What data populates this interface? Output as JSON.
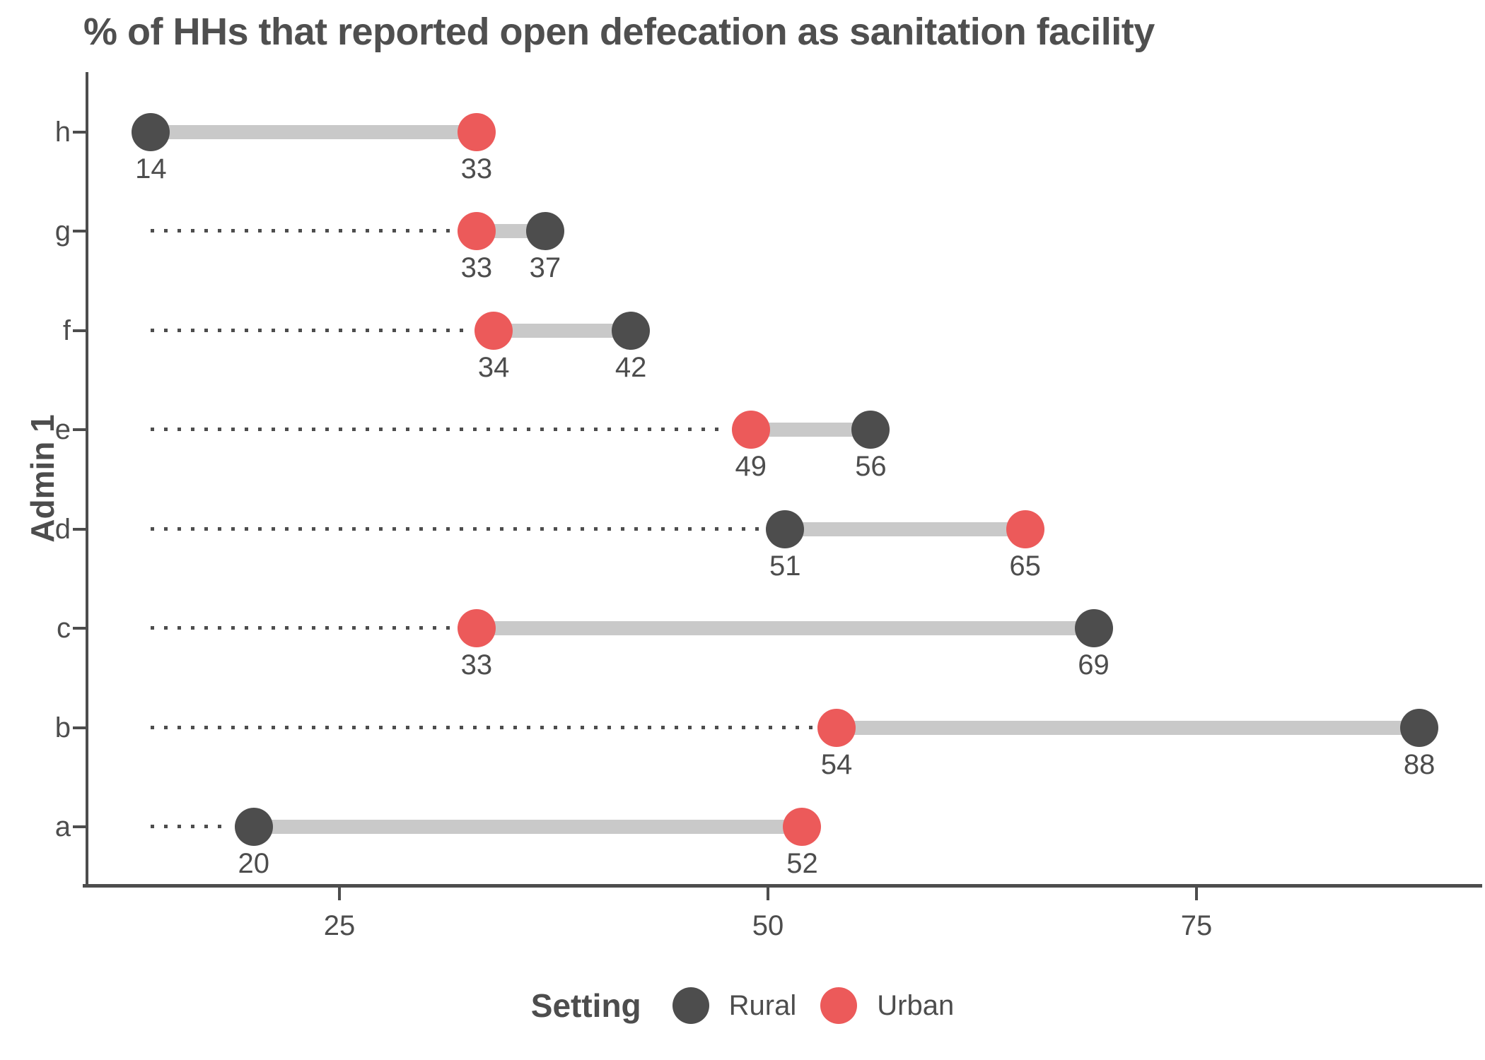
{
  "title": "% of HHs that reported open defecation as sanitation facility",
  "y_axis_label": "Admin 1",
  "legend": {
    "title": "Setting",
    "items": [
      {
        "label": "Rural",
        "color": "#4d4d4d"
      },
      {
        "label": "Urban",
        "color": "#ec5a5a"
      }
    ]
  },
  "colors": {
    "rural": "#4d4d4d",
    "urban": "#ec5a5a",
    "connector": "#c9c9c9",
    "leader_line": "#4d4d4d",
    "axis": "#4d4d4d",
    "text": "#4d4d4d",
    "title_text": "#4f4f4f",
    "background": "#ffffff"
  },
  "chart_data": {
    "type": "dumbbell",
    "title": "% of HHs that reported open defecation as sanitation facility",
    "xlabel": "",
    "ylabel": "Admin 1",
    "x_ticks": [
      "25",
      "50",
      "75"
    ],
    "x_tick_values": [
      25,
      50,
      75
    ],
    "xlim": [
      10.3,
      91.7
    ],
    "grid": false,
    "legend_position": "bottom",
    "value_labels": true,
    "leader_lines": "dotted line from overall minimum value (14) to each row's lower point",
    "categories_top_to_bottom": [
      "h",
      "g",
      "f",
      "e",
      "d",
      "c",
      "b",
      "a"
    ],
    "series": [
      {
        "name": "Rural",
        "color": "#4d4d4d",
        "values": [
          14,
          37,
          42,
          56,
          51,
          69,
          88,
          20
        ]
      },
      {
        "name": "Urban",
        "color": "#ec5a5a",
        "values": [
          33,
          33,
          34,
          49,
          65,
          33,
          54,
          52
        ]
      }
    ]
  }
}
